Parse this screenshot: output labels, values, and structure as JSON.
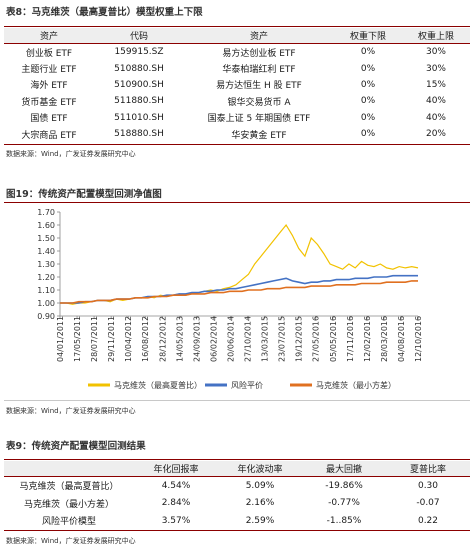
{
  "table8": {
    "title": "表8：马克维茨（最高夏普比）模型权重上下限",
    "headers": [
      "资产",
      "代码",
      "资产",
      "权重下限",
      "权重上限"
    ],
    "rows": [
      [
        "创业板 ETF",
        "159915.SZ",
        "易方达创业板 ETF",
        "0%",
        "30%"
      ],
      [
        "主题行业 ETF",
        "510880.SH",
        "华泰柏瑞红利 ETF",
        "0%",
        "30%"
      ],
      [
        "海外 ETF",
        "510900.SH",
        "易方达恒生 H 股 ETF",
        "0%",
        "15%"
      ],
      [
        "货币基金 ETF",
        "511880.SH",
        "银华交易货币 A",
        "0%",
        "40%"
      ],
      [
        "国债 ETF",
        "511010.SH",
        "国泰上证 5 年期国债 ETF",
        "0%",
        "40%"
      ],
      [
        "大宗商品 ETF",
        "518880.SH",
        "华安黄金 ETF",
        "0%",
        "20%"
      ]
    ],
    "source": "数据来源：Wind，广发证券发展研究中心"
  },
  "figure19": {
    "title": "图19：传统资产配置模型回测净值图",
    "source": "数据来源：Wind，广发证券发展研究中心"
  },
  "chart_data": {
    "type": "line",
    "title": "图19：传统资产配置模型回测净值图",
    "ylim": [
      0.9,
      1.7
    ],
    "yticks": [
      "0.90",
      "1.00",
      "1.10",
      "1.20",
      "1.30",
      "1.40",
      "1.50",
      "1.60",
      "1.70"
    ],
    "x_ticks": [
      "04/01/2011",
      "17/05/2011",
      "28/07/2011",
      "29/11/2011",
      "10/04/2012",
      "16/08/2012",
      "28/12/2012",
      "14/05/2013",
      "24/09/2013",
      "06/02/2014",
      "20/06/2014",
      "27/10/2014",
      "13/03/2015",
      "23/07/2015",
      "19/12/2015",
      "27/05/2016",
      "05/05/2016",
      "17/11/2016",
      "12/02/2016",
      "28/03/2016",
      "04/08/2016",
      "12/10/2016"
    ],
    "x_tick_labels_as_printed": [
      "04/01/2011",
      "17/05/2011",
      "28/07/2011",
      "29/11/2011",
      "10/04/2012",
      "16/08/2012",
      "28/12/2012",
      "14/05/2013",
      "24/09/2013",
      "06/02/2014",
      "20/06/2014",
      "27/10/2014",
      "13/03/2015",
      "23/07/2015",
      "19/12/2015",
      "27/05/2016",
      "05/05/2016",
      "17/11/2016",
      "12/02/2016",
      "28/03/2016",
      "04/08/2016",
      "12/10/2016"
    ],
    "series": [
      {
        "name": "马克维茨（最高夏普比）",
        "color": "#f2c200",
        "values": [
          1.0,
          1.0,
          0.99,
          1.0,
          1.0,
          1.01,
          1.02,
          1.02,
          1.01,
          1.03,
          1.02,
          1.03,
          1.04,
          1.04,
          1.05,
          1.04,
          1.06,
          1.05,
          1.06,
          1.07,
          1.06,
          1.07,
          1.08,
          1.09,
          1.1,
          1.09,
          1.11,
          1.12,
          1.14,
          1.18,
          1.22,
          1.3,
          1.36,
          1.42,
          1.48,
          1.54,
          1.6,
          1.52,
          1.42,
          1.36,
          1.5,
          1.45,
          1.38,
          1.3,
          1.28,
          1.26,
          1.3,
          1.27,
          1.32,
          1.29,
          1.28,
          1.3,
          1.27,
          1.26,
          1.28,
          1.27,
          1.28,
          1.27
        ]
      },
      {
        "name": "风险平价",
        "color": "#4472c4",
        "values": [
          1.0,
          1.0,
          1.0,
          1.0,
          1.01,
          1.01,
          1.02,
          1.02,
          1.02,
          1.03,
          1.03,
          1.03,
          1.04,
          1.04,
          1.05,
          1.05,
          1.05,
          1.06,
          1.06,
          1.07,
          1.07,
          1.08,
          1.08,
          1.09,
          1.09,
          1.1,
          1.1,
          1.11,
          1.11,
          1.12,
          1.13,
          1.14,
          1.15,
          1.16,
          1.17,
          1.18,
          1.19,
          1.17,
          1.16,
          1.15,
          1.16,
          1.16,
          1.17,
          1.17,
          1.18,
          1.18,
          1.18,
          1.19,
          1.19,
          1.19,
          1.2,
          1.2,
          1.2,
          1.21,
          1.21,
          1.21,
          1.21,
          1.21
        ]
      },
      {
        "name": "马克维茨（最小方差）",
        "color": "#e07020",
        "values": [
          1.0,
          1.0,
          1.0,
          1.01,
          1.01,
          1.01,
          1.02,
          1.02,
          1.02,
          1.03,
          1.03,
          1.03,
          1.04,
          1.04,
          1.04,
          1.05,
          1.05,
          1.05,
          1.06,
          1.06,
          1.06,
          1.07,
          1.07,
          1.07,
          1.08,
          1.08,
          1.08,
          1.09,
          1.09,
          1.09,
          1.1,
          1.1,
          1.1,
          1.11,
          1.11,
          1.11,
          1.12,
          1.12,
          1.12,
          1.12,
          1.13,
          1.13,
          1.13,
          1.13,
          1.14,
          1.14,
          1.14,
          1.14,
          1.15,
          1.15,
          1.15,
          1.15,
          1.16,
          1.16,
          1.16,
          1.16,
          1.17,
          1.17
        ]
      }
    ],
    "legend_placement": "bottom"
  },
  "table9": {
    "title": "表9：传统资产配置模型回测结果",
    "headers": [
      "",
      "年化回报率",
      "年化波动率",
      "最大回撤",
      "夏普比率"
    ],
    "rows": [
      [
        "马克维茨（最高夏普比）",
        "4.54%",
        "5.09%",
        "-19.86%",
        "0.30"
      ],
      [
        "马克维茨（最小方差）",
        "2.84%",
        "2.16%",
        "-0.77%",
        "-0.07"
      ],
      [
        "风险平价模型",
        "3.57%",
        "2.59%",
        "-1..85%",
        "0.22"
      ]
    ],
    "source": "数据来源：Wind，广发证券发展研究中心"
  }
}
